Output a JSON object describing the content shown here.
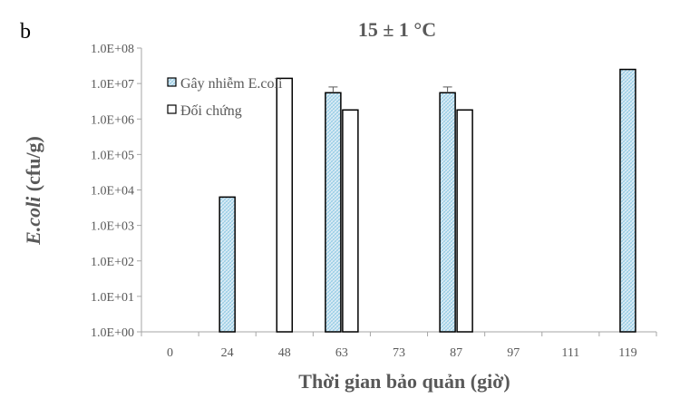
{
  "chart_data": {
    "type": "bar",
    "panel_label": "b",
    "title": "15 ± 1 °C",
    "xlabel": "Thời gian bảo quản (giờ)",
    "ylabel_italic": "E.coli",
    "ylabel_rest": " (cfu/g)",
    "y_scale": "log",
    "ylim": [
      1,
      100000000
    ],
    "y_ticks": [
      "1.0E+00",
      "1.0E+01",
      "1.0E+02",
      "1.0E+03",
      "1.0E+04",
      "1.0E+05",
      "1.0E+06",
      "1.0E+07",
      "1.0E+08"
    ],
    "categories": [
      "0",
      "24",
      "48",
      "63",
      "73",
      "87",
      "97",
      "111",
      "119"
    ],
    "legend_position": "top-left",
    "colors": {
      "infected_fill": "#dcecf5",
      "infected_pattern": "#8ec9e3",
      "control_fill": "#ffffff",
      "stroke": "#000000",
      "axis": "#a6a6a6",
      "text": "#595959"
    },
    "series": [
      {
        "name": "Gây nhiễm E.coli",
        "values": [
          null,
          6300,
          null,
          5500000,
          null,
          5500000,
          null,
          null,
          25000000
        ],
        "error": [
          null,
          null,
          null,
          2500000,
          null,
          2500000,
          null,
          null,
          null
        ]
      },
      {
        "name": "Đối chứng",
        "values": [
          null,
          null,
          14000000,
          1800000,
          null,
          1800000,
          null,
          null,
          null
        ],
        "error": [
          null,
          null,
          null,
          null,
          null,
          null,
          null,
          null,
          null
        ]
      }
    ]
  }
}
